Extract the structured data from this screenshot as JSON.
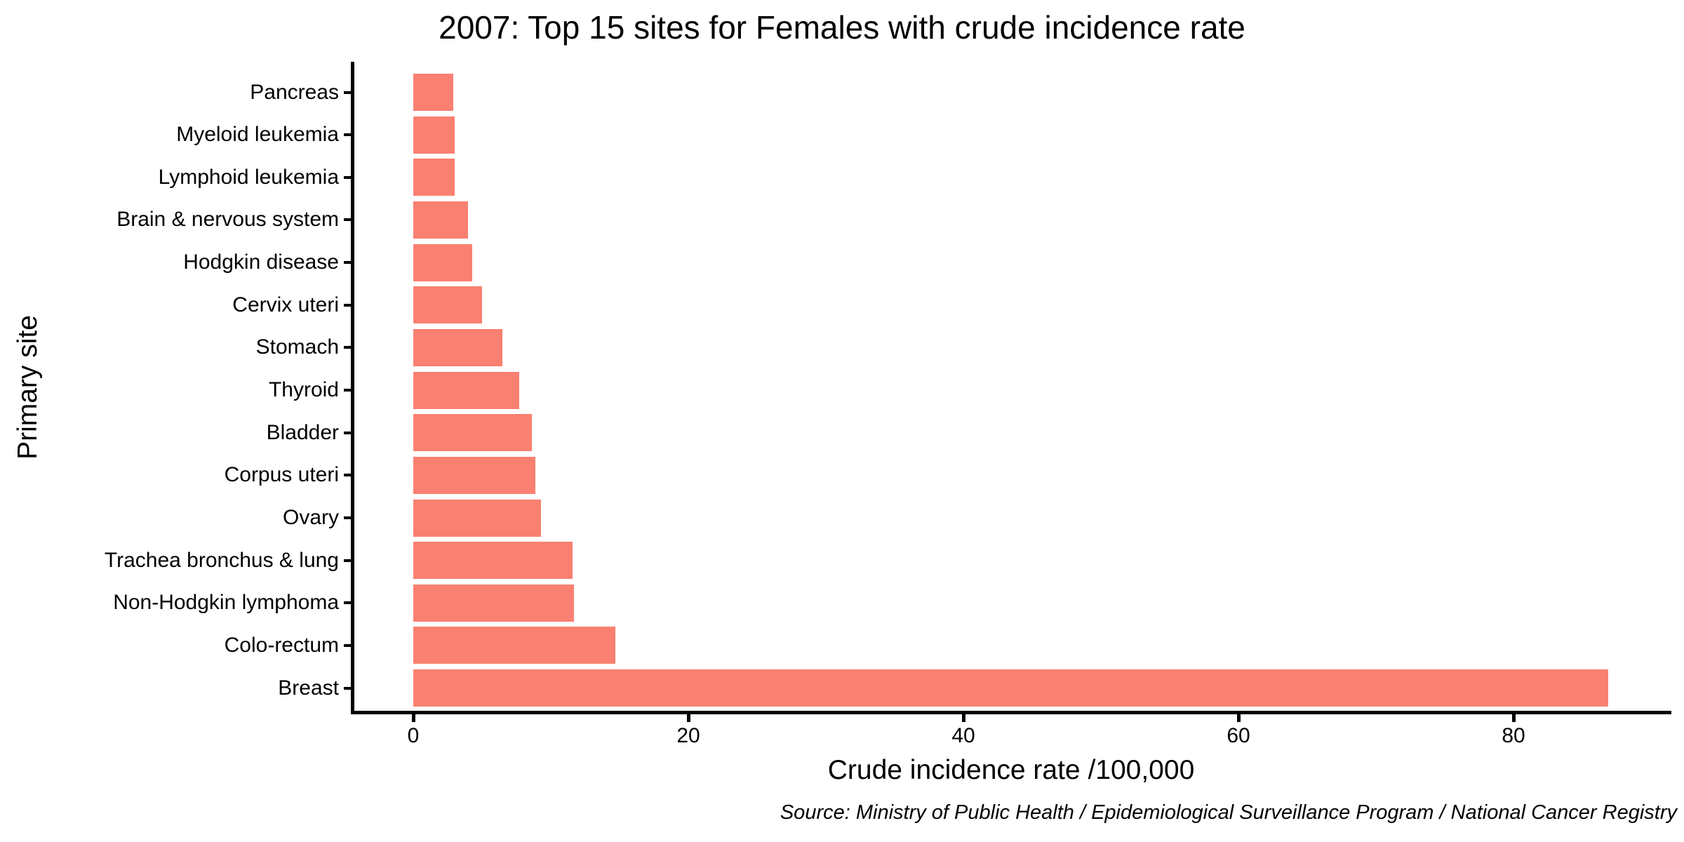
{
  "title": "2007: Top 15 sites for Females with crude incidence rate",
  "source_note": "Source: Ministry of Public Health / Epidemiological Surveillance Program / National Cancer Registry",
  "colors": {
    "bar": "#FA8072",
    "axis": "#000000",
    "text": "#000000",
    "background": "#FFFFFF"
  },
  "chart_data": {
    "type": "bar",
    "orientation": "horizontal",
    "title": "2007: Top 15 sites for Females with crude incidence rate",
    "xlabel": "Crude incidence rate /100,000",
    "ylabel": "Primary site",
    "categories": [
      "Pancreas",
      "Myeloid leukemia",
      "Lymphoid leukemia",
      "Brain & nervous system",
      "Hodgkin disease",
      "Cervix uteri",
      "Stomach",
      "Thyroid",
      "Bladder",
      "Corpus uteri",
      "Ovary",
      "Trachea bronchus & lung",
      "Non-Hodgkin lymphoma",
      "Colo-rectum",
      "Breast"
    ],
    "values": [
      2.9,
      3.0,
      3.0,
      4.0,
      4.3,
      5.0,
      6.5,
      7.7,
      8.6,
      8.9,
      9.3,
      11.6,
      11.7,
      14.7,
      86.9
    ],
    "x_ticks": [
      0,
      20,
      40,
      60,
      80
    ],
    "xlim": [
      0,
      91.5
    ],
    "grid": false,
    "legend": "none",
    "sort_order": "ascending top to bottom"
  }
}
